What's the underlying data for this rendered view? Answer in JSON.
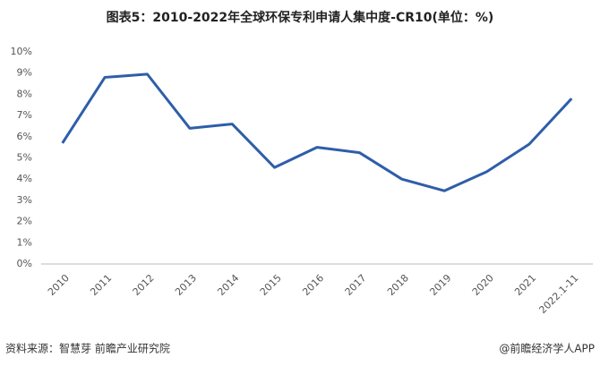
{
  "chart_data": {
    "type": "line",
    "title": "图表5：2010-2022年全球环保专利申请人集中度-CR10(单位：%)",
    "categories": [
      "2010",
      "2011",
      "2012",
      "2013",
      "2014",
      "2015",
      "2016",
      "2017",
      "2018",
      "2019",
      "2020",
      "2021",
      "2022.1-11"
    ],
    "series": [
      {
        "color": "#2e5ea8",
        "values": [
          5.7,
          8.8,
          8.95,
          6.4,
          6.6,
          4.55,
          5.5,
          5.25,
          4.0,
          3.45,
          4.35,
          5.65,
          7.8
        ]
      }
    ],
    "ylim": [
      0,
      10
    ],
    "yticks": [
      {
        "value": 0,
        "label": "0%"
      },
      {
        "value": 1,
        "label": "1%"
      },
      {
        "value": 2,
        "label": "2%"
      },
      {
        "value": 3,
        "label": "3%"
      },
      {
        "value": 4,
        "label": "4%"
      },
      {
        "value": 5,
        "label": "5%"
      },
      {
        "value": 6,
        "label": "6%"
      },
      {
        "value": 7,
        "label": "7%"
      },
      {
        "value": 8,
        "label": "8%"
      },
      {
        "value": 9,
        "label": "9%"
      },
      {
        "value": 10,
        "label": "10%"
      }
    ],
    "grid": false,
    "source": "资料来源：智慧芽 前瞻产业研究院",
    "credit": "@前瞻经济学人APP"
  }
}
